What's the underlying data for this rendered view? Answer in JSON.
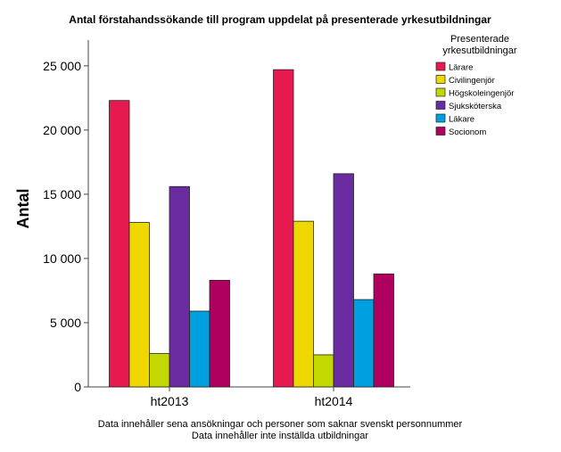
{
  "chart_data": {
    "type": "bar",
    "title": "Antal förstahandssökande till program uppdelat på presenterade yrkesutbildningar",
    "xlabel": "",
    "ylabel": "Antal",
    "categories": [
      "ht2013",
      "ht2014"
    ],
    "ylim": [
      0,
      27000
    ],
    "yticks": [
      0,
      5000,
      10000,
      15000,
      20000,
      25000
    ],
    "ytick_labels": [
      "0",
      "5 000",
      "10 000",
      "15 000",
      "20 000",
      "25 000"
    ],
    "grid": false,
    "legend": {
      "title_lines": [
        "Presenterade",
        "yrkesutbildningar"
      ],
      "placement": "top-right outside"
    },
    "series": [
      {
        "name": "Lärare",
        "color": "#E8194F",
        "values": [
          22300,
          24700
        ]
      },
      {
        "name": "Civilingenjör",
        "color": "#EFD800",
        "values": [
          12800,
          12900
        ]
      },
      {
        "name": "Högskoleingenjör",
        "color": "#C3D800",
        "values": [
          2600,
          2500
        ]
      },
      {
        "name": "Sjuksköterska",
        "color": "#6A2BA0",
        "values": [
          15600,
          16600
        ]
      },
      {
        "name": "Läkare",
        "color": "#00A0E0",
        "values": [
          5900,
          6800
        ]
      },
      {
        "name": "Socionom",
        "color": "#B0005F",
        "values": [
          8300,
          8800
        ]
      }
    ],
    "footnotes": [
      "Data innehåller sena ansökningar och personer som saknar svenskt personnummer",
      "Data innehåller inte inställda utbildningar"
    ]
  }
}
